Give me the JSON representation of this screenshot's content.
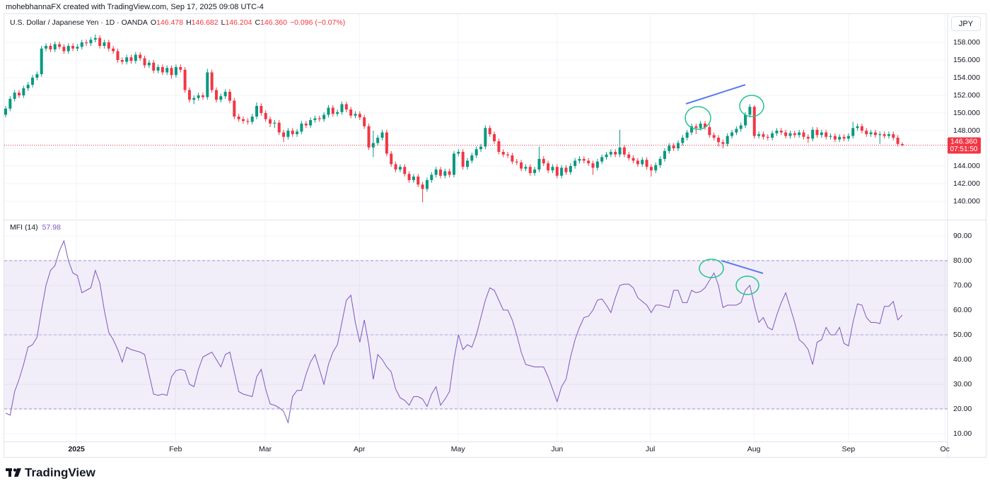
{
  "header": {
    "attribution": "mohebhannaFX created with TradingView.com, Sep 17, 2025 09:08 UTC-4"
  },
  "symbol_button": "JPY",
  "footer": "TradingView",
  "chart_data": [
    {
      "type": "candlestick",
      "title": "U.S. Dollar / Japanese Yen · 1D · OANDA",
      "ohlc_letters": [
        "O",
        "H",
        "L",
        "C"
      ],
      "close_label": "146.360",
      "change": "−0.096 (−0.07%)",
      "countdown": "07:51:50",
      "up_color": "#089981",
      "down_color": "#f23645",
      "xlim": [
        -1.26,
        210.1
      ],
      "ylim": [
        138,
        161.2
      ],
      "yticks": [
        {
          "value": 140,
          "label": "140.000"
        },
        {
          "value": 142,
          "label": "142.000"
        },
        {
          "value": 144,
          "label": "144.000"
        },
        {
          "value": 146,
          "label": "146.000"
        },
        {
          "value": 148,
          "label": "148.000"
        },
        {
          "value": 150,
          "label": "150.000"
        },
        {
          "value": 152,
          "label": "152.000"
        },
        {
          "value": 154,
          "label": "154.000"
        },
        {
          "value": 156,
          "label": "156.000"
        },
        {
          "value": 158,
          "label": "158.000"
        }
      ],
      "grid": true,
      "open": [
        149.8,
        150.5,
        151.6,
        152.3,
        152.0,
        152.8,
        153.2,
        154.0,
        154.4,
        157.3,
        157.6,
        157.2,
        157.8,
        157.5,
        157.0,
        157.6,
        157.3,
        157.5,
        158.0,
        157.9,
        158.3,
        158.5,
        157.6,
        158.0,
        157.3,
        157.0,
        156.0,
        155.8,
        156.3,
        155.9,
        156.6,
        156.2,
        155.4,
        155.7,
        154.8,
        155.2,
        154.6,
        155.1,
        154.3,
        155.2,
        154.9,
        152.6,
        151.5,
        151.7,
        152.0,
        151.8,
        154.6,
        152.6,
        151.5,
        151.9,
        152.4,
        151.4,
        149.6,
        149.3,
        149.1,
        149.0,
        149.6,
        150.8,
        150.0,
        149.3,
        148.8,
        148.9,
        147.8,
        147.3,
        148.0,
        147.6,
        147.9,
        148.8,
        148.6,
        149.2,
        149.4,
        149.3,
        149.8,
        150.6,
        149.9,
        150.1,
        151.0,
        150.4,
        149.7,
        149.9,
        149.5,
        148.5,
        146.1,
        146.6,
        147.2,
        147.8,
        145.4,
        144.2,
        143.6,
        143.9,
        143.1,
        142.4,
        142.8,
        141.9,
        141.4,
        142.4,
        143.0,
        143.6,
        142.9,
        143.4,
        143.0,
        145.4,
        145.6,
        143.9,
        144.6,
        145.2,
        145.9,
        146.2,
        148.3,
        147.6,
        146.8,
        145.6,
        145.3,
        145.2,
        144.5,
        144.4,
        143.7,
        143.9,
        143.2,
        143.6,
        144.8,
        144.3,
        143.5,
        143.9,
        142.9,
        143.8,
        143.3,
        144.0,
        144.6,
        144.8,
        144.6,
        144.3,
        143.8,
        144.5,
        145.0,
        145.3,
        145.6,
        145.3,
        146.1,
        145.3,
        144.9,
        144.6,
        144.2,
        144.7,
        143.9,
        143.5,
        144.1,
        144.8,
        145.7,
        146.3,
        146.0,
        146.6,
        147.2,
        147.8,
        148.5,
        148.3,
        148.8,
        148.4,
        147.5,
        147.2,
        146.7,
        146.5,
        147.4,
        147.8,
        148.2,
        148.6,
        149.8,
        150.7,
        147.4,
        147.6,
        147.3,
        147.2,
        147.7,
        148.0,
        147.8,
        147.4,
        147.7,
        147.5,
        147.8,
        147.3,
        147.1,
        148.1,
        147.5,
        147.8,
        147.3,
        147.4,
        147.0,
        147.3,
        147.1,
        147.4,
        148.3,
        148.5,
        148.0,
        147.6,
        147.8,
        147.5,
        147.6,
        147.4,
        147.6,
        147.2,
        146.478
      ],
      "high": [
        150.8,
        151.9,
        152.6,
        152.6,
        153.1,
        153.5,
        154.3,
        154.7,
        157.6,
        157.9,
        157.9,
        158.1,
        158.1,
        157.8,
        157.9,
        157.9,
        157.8,
        158.3,
        158.3,
        158.6,
        158.9,
        158.8,
        158.3,
        158.3,
        157.6,
        157.3,
        156.3,
        156.6,
        156.6,
        156.9,
        156.9,
        156.5,
        156.0,
        156.0,
        155.5,
        155.5,
        155.4,
        155.4,
        155.5,
        155.5,
        155.2,
        152.9,
        152.0,
        152.3,
        152.3,
        155.0,
        154.9,
        152.9,
        152.2,
        152.7,
        152.7,
        151.7,
        149.9,
        149.6,
        149.4,
        149.9,
        151.2,
        151.1,
        150.3,
        149.6,
        149.2,
        149.2,
        148.1,
        148.3,
        148.3,
        148.2,
        149.1,
        149.1,
        149.5,
        149.7,
        149.7,
        150.1,
        150.9,
        150.9,
        150.4,
        151.3,
        151.3,
        150.7,
        150.2,
        150.2,
        149.8,
        148.8,
        148.0,
        147.5,
        148.1,
        148.1,
        145.7,
        144.5,
        144.2,
        144.2,
        143.4,
        143.1,
        143.1,
        142.2,
        142.7,
        143.3,
        143.9,
        143.9,
        143.7,
        143.7,
        145.7,
        145.9,
        145.9,
        144.9,
        145.5,
        146.2,
        146.5,
        148.6,
        148.6,
        147.9,
        147.1,
        145.9,
        145.6,
        145.5,
        144.8,
        144.7,
        144.2,
        144.2,
        143.9,
        146.2,
        145.1,
        144.6,
        144.2,
        144.2,
        144.1,
        144.1,
        144.3,
        144.9,
        145.1,
        145.1,
        144.9,
        144.6,
        144.8,
        145.3,
        145.6,
        145.9,
        145.9,
        148.1,
        146.4,
        145.6,
        145.2,
        144.9,
        145.0,
        145.0,
        144.2,
        144.4,
        145.1,
        146.0,
        146.6,
        146.6,
        146.9,
        147.5,
        148.1,
        148.8,
        148.8,
        149.1,
        149.1,
        148.7,
        147.8,
        147.5,
        147.0,
        147.7,
        148.1,
        148.5,
        148.9,
        150.1,
        151.0,
        150.9,
        147.9,
        147.9,
        147.6,
        148.0,
        148.3,
        148.3,
        148.1,
        148.0,
        148.0,
        148.1,
        148.1,
        147.6,
        148.4,
        148.4,
        148.1,
        148.1,
        147.7,
        147.7,
        147.6,
        147.6,
        147.7,
        149.0,
        148.8,
        148.8,
        148.3,
        148.1,
        148.1,
        147.9,
        147.9,
        147.9,
        147.9,
        147.5,
        146.682
      ],
      "low": [
        149.5,
        150.2,
        151.3,
        151.7,
        151.7,
        152.5,
        152.9,
        153.7,
        154.1,
        157.0,
        156.9,
        156.9,
        157.2,
        156.7,
        156.7,
        157.0,
        157.0,
        157.2,
        157.6,
        157.6,
        158.0,
        157.3,
        157.3,
        157.0,
        156.7,
        155.7,
        155.5,
        155.5,
        155.6,
        155.6,
        155.9,
        155.1,
        155.1,
        154.5,
        154.5,
        154.3,
        154.3,
        153.9,
        154.0,
        154.6,
        152.3,
        151.2,
        151.0,
        151.4,
        151.5,
        151.5,
        152.3,
        151.2,
        151.2,
        151.6,
        151.1,
        149.3,
        149.0,
        148.8,
        148.7,
        148.7,
        149.3,
        149.7,
        149.0,
        148.4,
        148.3,
        147.5,
        146.7,
        147.0,
        147.3,
        147.3,
        147.6,
        148.3,
        148.3,
        148.9,
        149.0,
        149.0,
        149.5,
        149.6,
        149.6,
        149.8,
        150.1,
        149.4,
        149.4,
        149.2,
        148.2,
        145.8,
        145.0,
        146.3,
        146.9,
        145.1,
        143.9,
        143.3,
        143.3,
        142.8,
        142.1,
        142.1,
        141.6,
        139.9,
        141.1,
        142.1,
        142.7,
        142.6,
        142.6,
        142.7,
        142.7,
        145.1,
        143.6,
        143.6,
        144.3,
        144.9,
        145.6,
        145.9,
        147.3,
        146.5,
        145.3,
        145.0,
        144.9,
        144.2,
        144.1,
        143.4,
        143.4,
        142.9,
        142.9,
        143.3,
        144.0,
        143.2,
        143.2,
        142.6,
        142.6,
        143.0,
        143.0,
        143.7,
        144.3,
        144.3,
        144.0,
        143.0,
        143.5,
        144.2,
        144.7,
        145.0,
        145.0,
        145.0,
        145.0,
        144.6,
        144.3,
        143.9,
        143.9,
        143.6,
        142.8,
        143.2,
        143.8,
        144.5,
        145.4,
        145.7,
        145.7,
        146.3,
        146.9,
        147.5,
        147.6,
        148.0,
        148.1,
        147.2,
        146.9,
        146.2,
        146.0,
        146.2,
        147.1,
        147.5,
        147.9,
        148.3,
        149.5,
        147.1,
        147.1,
        147.0,
        146.9,
        146.9,
        147.4,
        147.5,
        147.1,
        147.1,
        147.2,
        147.2,
        147.0,
        146.6,
        146.8,
        147.2,
        147.2,
        147.0,
        147.0,
        146.7,
        146.7,
        146.8,
        146.8,
        147.1,
        148.0,
        147.7,
        147.3,
        147.3,
        147.2,
        146.5,
        147.1,
        147.1,
        146.9,
        146.2,
        146.204
      ],
      "close": [
        150.5,
        151.6,
        152.3,
        152.0,
        152.8,
        153.2,
        154.0,
        154.4,
        157.3,
        157.6,
        157.2,
        157.8,
        157.5,
        157.0,
        157.6,
        157.3,
        157.5,
        158.0,
        157.9,
        158.3,
        158.5,
        157.6,
        158.0,
        157.3,
        157.0,
        156.0,
        155.8,
        156.3,
        155.9,
        156.6,
        156.2,
        155.4,
        155.7,
        154.8,
        155.2,
        154.6,
        155.1,
        154.3,
        155.2,
        154.9,
        152.6,
        151.5,
        151.7,
        152.0,
        151.8,
        154.6,
        152.6,
        151.5,
        151.9,
        152.4,
        151.4,
        149.6,
        149.3,
        149.1,
        149.0,
        149.6,
        150.8,
        150.0,
        149.3,
        148.8,
        148.9,
        147.8,
        147.3,
        148.0,
        147.6,
        147.9,
        148.8,
        148.6,
        149.2,
        149.4,
        149.3,
        149.8,
        150.6,
        149.9,
        150.1,
        151.0,
        150.4,
        149.7,
        149.9,
        149.5,
        148.5,
        146.1,
        146.6,
        147.2,
        147.8,
        145.4,
        144.2,
        143.6,
        143.9,
        143.1,
        142.4,
        142.8,
        141.9,
        141.4,
        142.4,
        143.0,
        143.6,
        142.9,
        143.4,
        143.0,
        145.4,
        145.6,
        143.9,
        144.6,
        145.2,
        145.9,
        146.2,
        148.3,
        147.6,
        146.8,
        145.6,
        145.3,
        145.2,
        144.5,
        144.4,
        143.7,
        143.9,
        143.2,
        143.6,
        144.8,
        144.3,
        143.5,
        143.9,
        142.9,
        143.8,
        143.3,
        144.0,
        144.6,
        144.8,
        144.6,
        144.3,
        143.8,
        144.5,
        145.0,
        145.3,
        145.6,
        145.3,
        146.1,
        145.3,
        144.9,
        144.6,
        144.2,
        144.7,
        143.9,
        143.5,
        144.1,
        144.8,
        145.7,
        146.3,
        146.0,
        146.6,
        147.2,
        147.8,
        148.5,
        148.3,
        148.8,
        148.4,
        147.5,
        147.2,
        146.7,
        146.5,
        147.4,
        147.8,
        148.2,
        148.6,
        149.8,
        150.7,
        147.4,
        147.6,
        147.3,
        147.2,
        147.7,
        148.0,
        147.8,
        147.4,
        147.7,
        147.5,
        147.8,
        147.3,
        147.1,
        148.1,
        147.5,
        147.8,
        147.3,
        147.4,
        147.0,
        147.3,
        147.1,
        147.4,
        148.3,
        148.5,
        148.0,
        147.6,
        147.8,
        147.5,
        147.6,
        147.4,
        147.6,
        147.2,
        146.5,
        146.36
      ]
    },
    {
      "type": "line",
      "title": "MFI (14)",
      "color": "#7e57c2",
      "levels": [
        20,
        50,
        80
      ],
      "xlim": [
        -1.26,
        210.1
      ],
      "ylim": [
        7,
        96
      ],
      "yticks": [
        {
          "value": 10,
          "label": "10.00"
        },
        {
          "value": 20,
          "label": "20.00"
        },
        {
          "value": 30,
          "label": "30.00"
        },
        {
          "value": 40,
          "label": "40.00"
        },
        {
          "value": 50,
          "label": "50.00"
        },
        {
          "value": 60,
          "label": "60.00"
        },
        {
          "value": 70,
          "label": "70.00"
        },
        {
          "value": 80,
          "label": "80.00"
        },
        {
          "value": 90,
          "label": "90.00"
        }
      ],
      "xticks": [
        {
          "value": 15.8,
          "label": "2025"
        },
        {
          "value": 37.9,
          "label": "Feb"
        },
        {
          "value": 57.9,
          "label": "Mar"
        },
        {
          "value": 78.9,
          "label": "Apr"
        },
        {
          "value": 100.9,
          "label": "May"
        },
        {
          "value": 123,
          "label": "Jun"
        },
        {
          "value": 143.8,
          "label": "Jul"
        },
        {
          "value": 166.9,
          "label": "Aug"
        },
        {
          "value": 188,
          "label": "Sep"
        },
        {
          "value": 209.5,
          "label": "Oc"
        }
      ],
      "grid": true,
      "values": [
        18.3,
        17.5,
        27,
        32,
        38,
        45,
        46,
        49,
        60,
        70,
        76,
        78,
        84,
        88,
        80,
        75,
        74,
        67,
        68,
        69,
        76,
        71,
        60,
        51,
        48,
        44,
        39,
        45,
        44,
        43.5,
        43,
        42,
        34,
        26,
        25.5,
        26,
        25.5,
        33,
        35.5,
        36,
        35.5,
        30,
        29,
        36,
        41,
        42,
        43,
        40,
        37,
        42,
        43,
        35,
        27,
        26,
        25.5,
        25,
        33,
        36,
        28,
        22,
        21.5,
        20.5,
        19,
        14.5,
        25,
        27.5,
        27.5,
        34,
        39,
        42,
        36,
        30,
        38,
        43,
        46,
        55,
        64,
        66,
        55,
        47,
        56,
        46,
        32,
        42,
        40,
        37,
        35,
        28,
        24.5,
        23.5,
        21.5,
        25,
        25,
        24,
        21,
        26,
        29,
        21.5,
        24,
        27,
        40,
        50,
        44,
        46,
        45,
        50,
        57,
        64,
        69,
        68,
        64,
        60,
        60,
        56,
        50,
        43,
        38,
        37.5,
        37,
        37,
        37,
        33,
        28,
        23,
        29,
        32,
        41,
        48,
        53,
        57,
        57.5,
        60,
        64,
        64.5,
        62,
        59,
        65,
        70,
        70.5,
        70.5,
        69,
        65,
        63.5,
        62,
        59,
        62,
        62,
        61.5,
        61,
        68,
        68,
        63,
        63,
        68,
        67,
        67.5,
        69,
        72,
        75,
        70,
        61,
        62,
        62,
        62,
        63,
        68,
        70,
        62,
        55,
        57,
        53,
        52,
        58,
        63,
        67,
        61,
        55,
        48,
        46.5,
        44,
        38,
        47,
        48,
        53,
        50,
        50,
        53,
        46.5,
        45.5,
        55,
        62.5,
        62,
        57,
        55,
        55,
        54.5,
        61.5,
        61.5,
        63.5,
        56,
        57.98
      ]
    }
  ]
}
